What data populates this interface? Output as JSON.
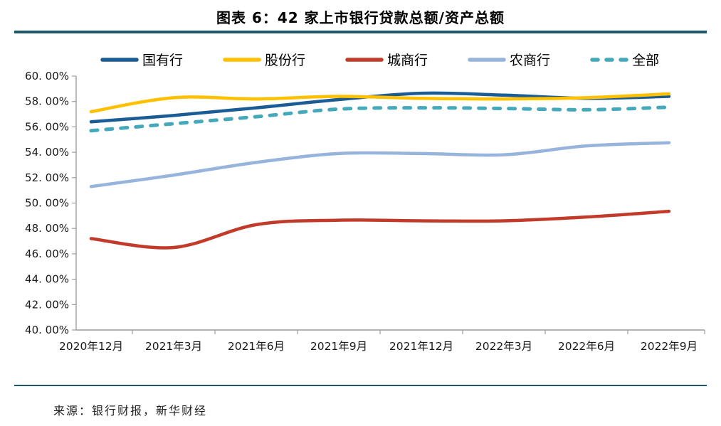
{
  "header": {
    "title": "图表 6：42 家上市银行贷款总额/资产总额"
  },
  "footer": {
    "source": "来源：银行财报，新华财经"
  },
  "colors": {
    "divider": "#1E5765",
    "axis": "#9c9c9c",
    "label_text": "#1a1a1a"
  },
  "chart_data": {
    "type": "line",
    "title": "图表 6：42 家上市银行贷款总额/资产总额",
    "xlabel": "",
    "ylabel": "",
    "grid": false,
    "legend_position": "top",
    "ylim": [
      40,
      60
    ],
    "ytick_step": 2,
    "categories": [
      "2020年12月",
      "2021年3月",
      "2021年6月",
      "2021年9月",
      "2021年12月",
      "2022年3月",
      "2022年6月",
      "2022年9月"
    ],
    "yticks": [
      {
        "v": 60,
        "label": "60. 00%"
      },
      {
        "v": 58,
        "label": "58. 00%"
      },
      {
        "v": 56,
        "label": "56. 00%"
      },
      {
        "v": 54,
        "label": "54. 00%"
      },
      {
        "v": 52,
        "label": "52. 00%"
      },
      {
        "v": 50,
        "label": "50. 00%"
      },
      {
        "v": 48,
        "label": "48. 00%"
      },
      {
        "v": 46,
        "label": "46. 00%"
      },
      {
        "v": 44,
        "label": "44. 00%"
      },
      {
        "v": 42,
        "label": "42. 00%"
      },
      {
        "v": 40,
        "label": "40. 00%"
      }
    ],
    "series": [
      {
        "name": "国有行",
        "color": "#1A5C96",
        "dashed": false,
        "values": [
          56.4,
          56.9,
          57.5,
          58.15,
          58.65,
          58.5,
          58.25,
          58.4
        ]
      },
      {
        "name": "股份行",
        "color": "#FFC000",
        "dashed": false,
        "values": [
          57.2,
          58.3,
          58.2,
          58.4,
          58.25,
          58.2,
          58.3,
          58.6
        ]
      },
      {
        "name": "城商行",
        "color": "#C23B2A",
        "dashed": false,
        "values": [
          47.2,
          46.5,
          48.3,
          48.65,
          48.6,
          48.6,
          48.9,
          49.35
        ]
      },
      {
        "name": "农商行",
        "color": "#97B4DC",
        "dashed": false,
        "values": [
          51.3,
          52.2,
          53.2,
          53.9,
          53.9,
          53.8,
          54.5,
          54.75
        ]
      },
      {
        "name": "全部",
        "color": "#45A9BC",
        "dashed": true,
        "values": [
          55.7,
          56.25,
          56.8,
          57.4,
          57.5,
          57.45,
          57.35,
          57.55
        ]
      }
    ]
  }
}
